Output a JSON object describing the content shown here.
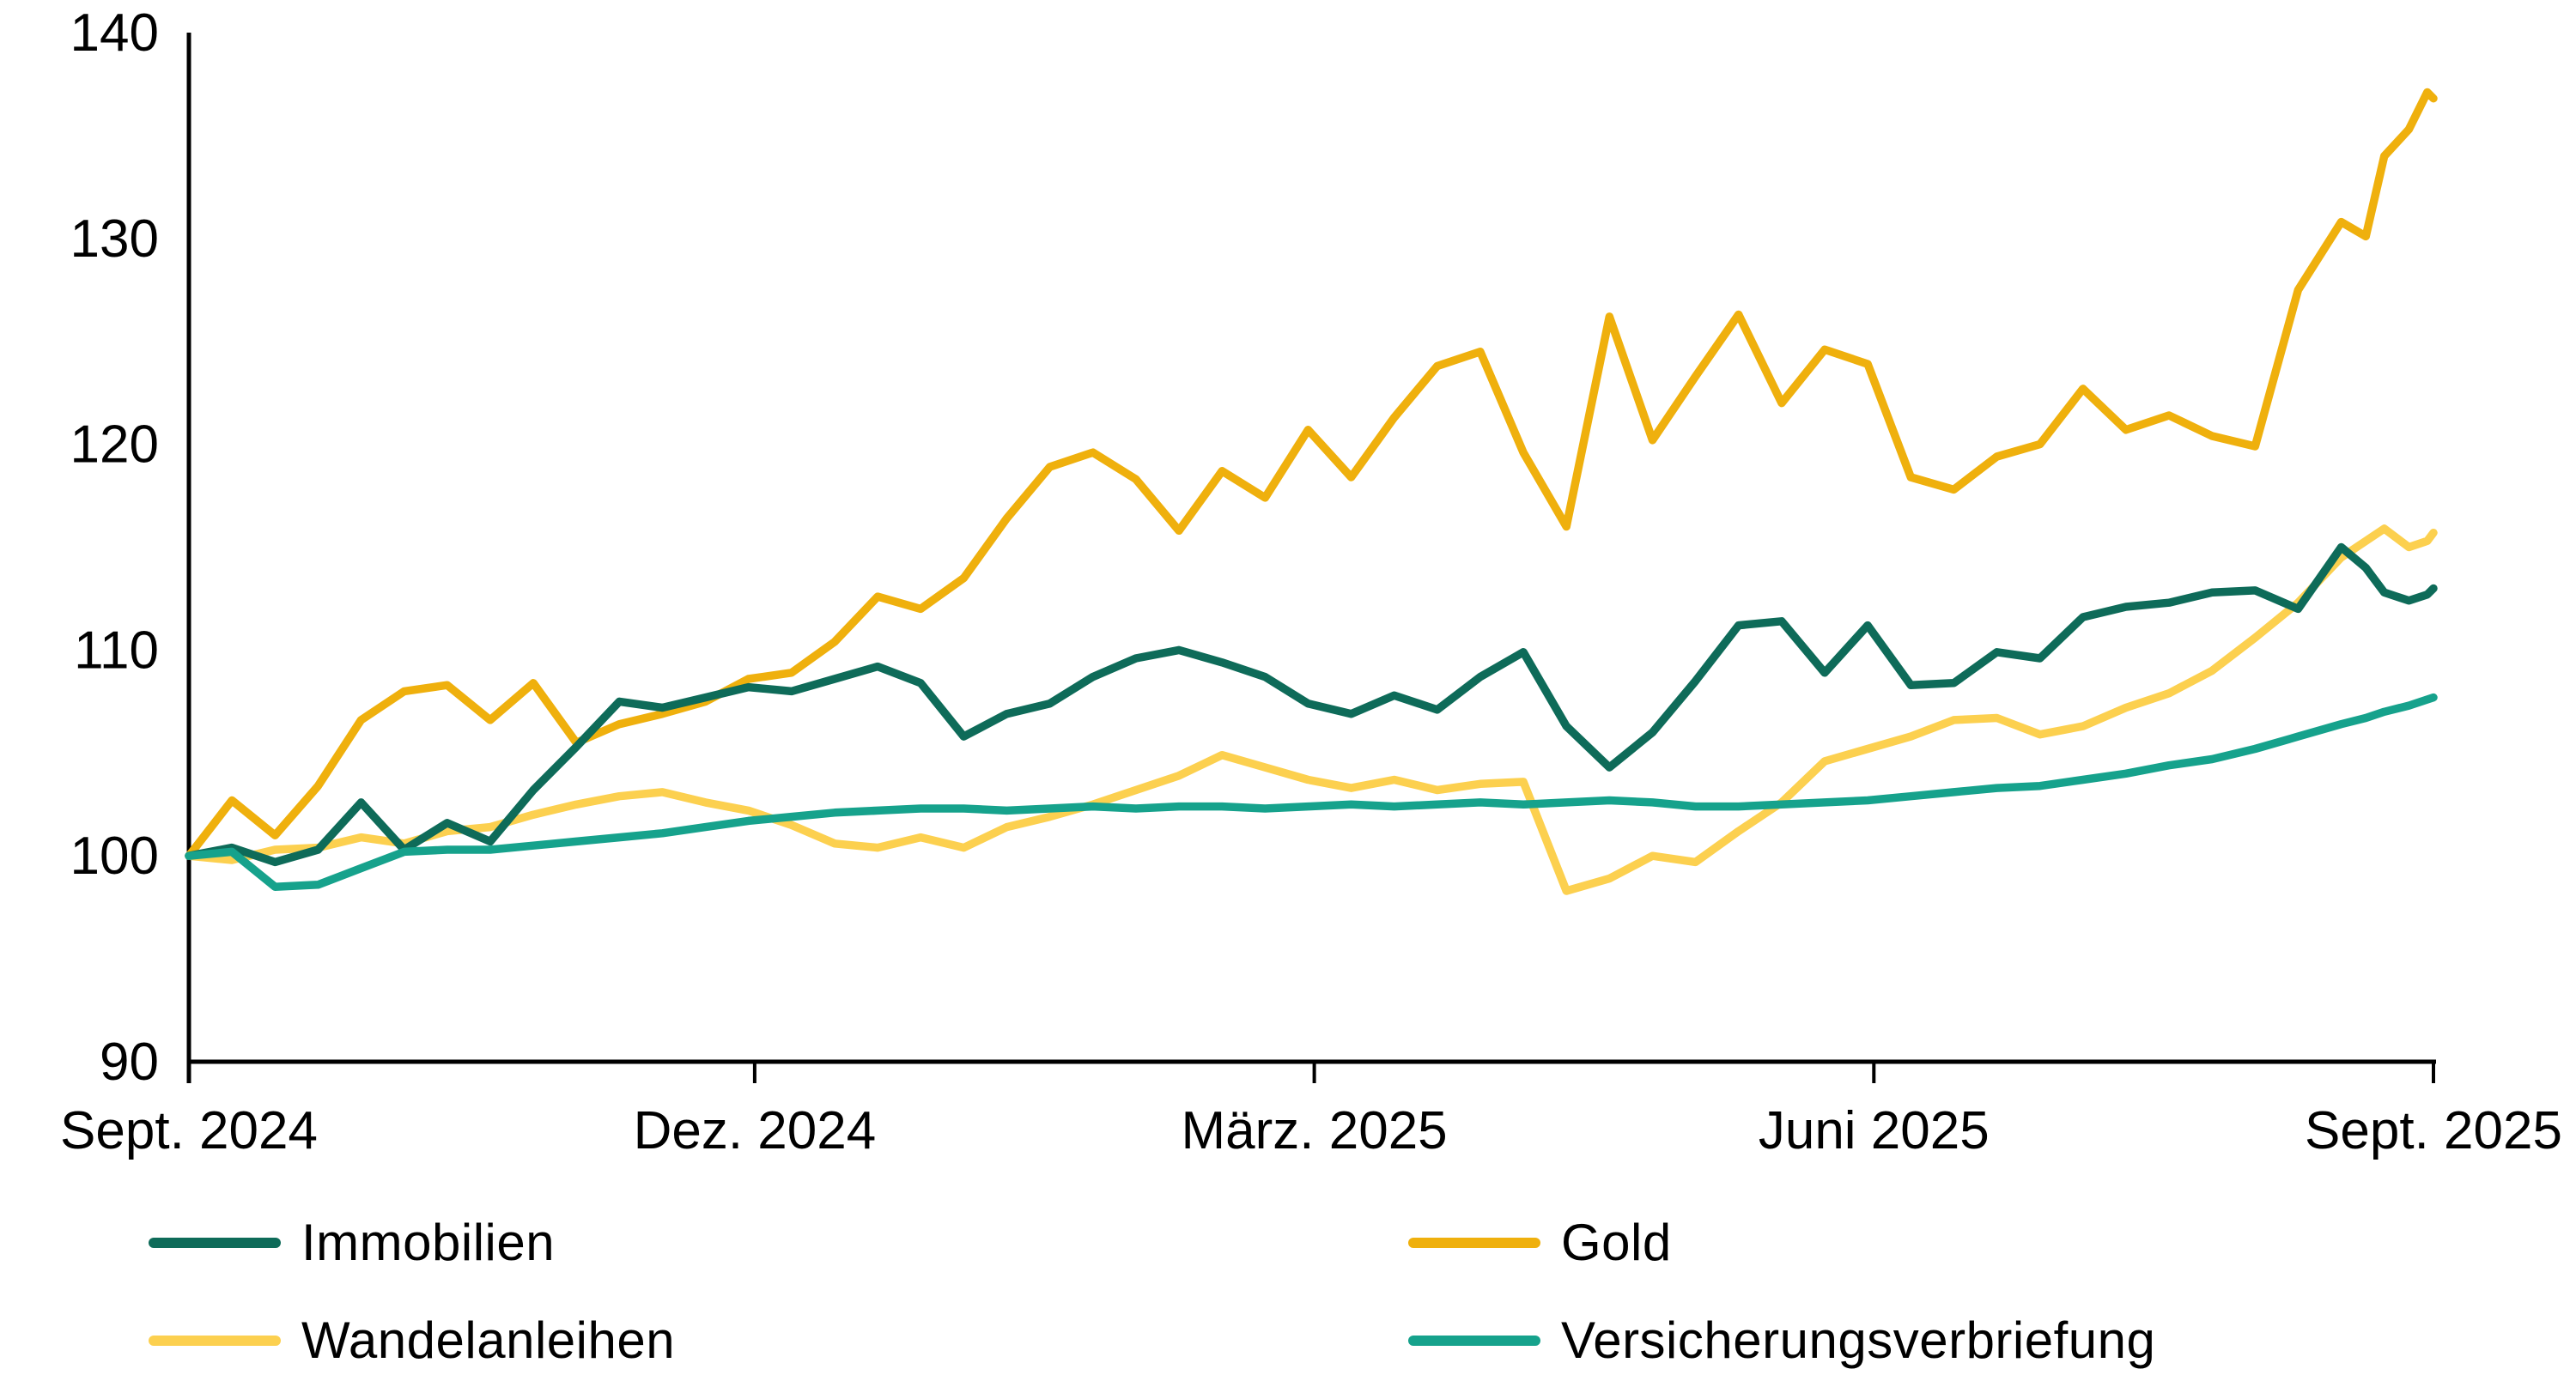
{
  "chart_data": {
    "type": "line",
    "title": "",
    "background": "#FFFFFF",
    "axis_color": "#000000",
    "text_color": "#000000",
    "index_base": 100,
    "x_axis": {
      "unit": "days",
      "domain": [
        0,
        365
      ],
      "ticks": [
        {
          "day": 0,
          "label": "Sept. 2024"
        },
        {
          "day": 92,
          "label": "Dez. 2024"
        },
        {
          "day": 183,
          "label": "März. 2025"
        },
        {
          "day": 274,
          "label": "Juni 2025"
        },
        {
          "day": 365,
          "label": "Sept. 2025"
        }
      ]
    },
    "y_axis": {
      "min": 90,
      "max": 140,
      "ticks": [
        90,
        100,
        110,
        120,
        130,
        140
      ]
    },
    "grid": false,
    "legend_position": "bottom",
    "days": [
      0,
      7,
      14,
      21,
      28,
      35,
      42,
      49,
      56,
      63,
      70,
      77,
      84,
      91,
      98,
      105,
      112,
      119,
      126,
      133,
      140,
      147,
      154,
      161,
      168,
      175,
      182,
      189,
      196,
      203,
      210,
      217,
      224,
      231,
      238,
      245,
      252,
      259,
      266,
      273,
      280,
      287,
      294,
      301,
      308,
      315,
      322,
      329,
      336,
      343,
      350,
      354,
      357,
      361,
      364,
      365
    ],
    "draw_order": [
      1,
      2,
      0,
      3
    ],
    "series": [
      {
        "name": "Immobilien",
        "color": "#0E6B59",
        "values": [
          100,
          100.4,
          99.7,
          100.3,
          102.6,
          100.3,
          101.6,
          100.7,
          103.2,
          105.3,
          107.5,
          107.2,
          107.7,
          108.2,
          108.0,
          108.6,
          109.2,
          108.4,
          105.8,
          106.9,
          107.4,
          108.7,
          109.6,
          110.0,
          109.4,
          108.7,
          107.4,
          106.9,
          107.8,
          107.1,
          108.7,
          109.9,
          106.3,
          104.3,
          106.0,
          108.5,
          111.2,
          111.4,
          108.9,
          111.2,
          108.3,
          108.4,
          109.9,
          109.6,
          111.6,
          112.1,
          112.3,
          112.8,
          112.9,
          112.0,
          115.0,
          114.0,
          112.8,
          112.4,
          112.7,
          113.0
        ]
      },
      {
        "name": "Gold",
        "color": "#EFB00D",
        "values": [
          100,
          102.7,
          101.0,
          103.4,
          106.6,
          108.0,
          108.3,
          106.6,
          108.4,
          105.5,
          106.4,
          106.9,
          107.5,
          108.6,
          108.9,
          110.4,
          112.6,
          112.0,
          113.5,
          116.4,
          118.9,
          119.6,
          118.3,
          115.8,
          118.7,
          117.4,
          120.7,
          118.4,
          121.3,
          123.8,
          124.5,
          119.6,
          116.0,
          126.2,
          120.2,
          123.3,
          126.3,
          122.0,
          124.6,
          123.9,
          118.4,
          117.8,
          119.4,
          120.0,
          122.7,
          120.7,
          121.4,
          120.4,
          119.9,
          127.5,
          130.8,
          130.1,
          134.0,
          135.3,
          137.1,
          136.8
        ]
      },
      {
        "name": "Wandelanleihen",
        "color": "#FCD04F",
        "values": [
          100,
          99.8,
          100.3,
          100.4,
          100.9,
          100.6,
          101.2,
          101.4,
          102.0,
          102.5,
          102.9,
          103.1,
          102.6,
          102.2,
          101.5,
          100.6,
          100.4,
          100.9,
          100.4,
          101.4,
          101.9,
          102.5,
          103.2,
          103.9,
          104.9,
          104.3,
          103.7,
          103.3,
          103.7,
          103.2,
          103.5,
          103.6,
          98.3,
          98.9,
          100.0,
          99.7,
          101.2,
          102.6,
          104.6,
          105.2,
          105.8,
          106.6,
          106.7,
          105.9,
          106.3,
          107.2,
          107.9,
          109.0,
          110.6,
          112.3,
          114.5,
          115.3,
          115.9,
          115.0,
          115.3,
          115.7
        ]
      },
      {
        "name": "Versicherungsverbriefung",
        "color": "#16A28C",
        "values": [
          100,
          100.2,
          98.5,
          98.6,
          99.4,
          100.2,
          100.3,
          100.3,
          100.5,
          100.7,
          100.9,
          101.1,
          101.4,
          101.7,
          101.9,
          102.1,
          102.2,
          102.3,
          102.3,
          102.2,
          102.3,
          102.4,
          102.3,
          102.4,
          102.4,
          102.3,
          102.4,
          102.5,
          102.4,
          102.5,
          102.6,
          102.5,
          102.6,
          102.7,
          102.6,
          102.4,
          102.4,
          102.5,
          102.6,
          102.7,
          102.9,
          103.1,
          103.3,
          103.4,
          103.7,
          104.0,
          104.4,
          104.7,
          105.2,
          105.8,
          106.4,
          106.7,
          107.0,
          107.3,
          107.6,
          107.7
        ]
      }
    ]
  },
  "legend": {
    "items": [
      {
        "series_index": 0,
        "col": 0,
        "row": 0
      },
      {
        "series_index": 1,
        "col": 1,
        "row": 0
      },
      {
        "series_index": 2,
        "col": 0,
        "row": 1
      },
      {
        "series_index": 3,
        "col": 1,
        "row": 1
      }
    ]
  }
}
